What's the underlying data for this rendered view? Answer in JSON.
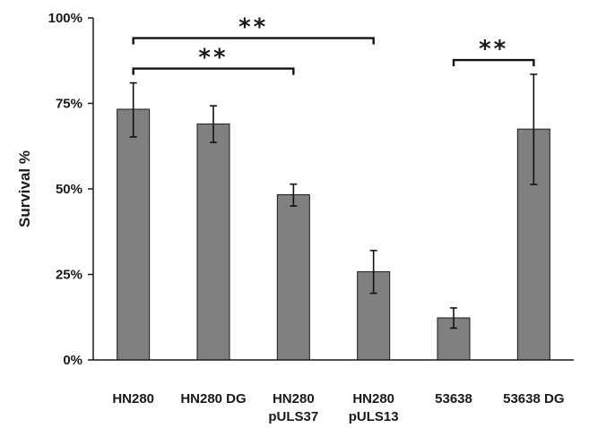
{
  "chart_data": {
    "type": "bar",
    "title": "",
    "xlabel": "",
    "ylabel": "Survival %",
    "ylim": [
      0,
      100
    ],
    "yticks": [
      {
        "value": 0,
        "label": "0%"
      },
      {
        "value": 25,
        "label": "25%"
      },
      {
        "value": 50,
        "label": "50%"
      },
      {
        "value": 75,
        "label": "75%"
      },
      {
        "value": 100,
        "label": "100%"
      }
    ],
    "grid": false,
    "legend": "none",
    "bar_color": "#808080",
    "categories": [
      {
        "line1": "HN280",
        "line2": ""
      },
      {
        "line1": "HN280 DG",
        "line2": ""
      },
      {
        "line1": "HN280",
        "line2": "pULS37"
      },
      {
        "line1": "HN280",
        "line2": "pULS13"
      },
      {
        "line1": "53638",
        "line2": ""
      },
      {
        "line1": "53638 DG",
        "line2": ""
      }
    ],
    "values": [
      73.3,
      69.0,
      48.3,
      25.8,
      12.3,
      67.5
    ],
    "error_low": [
      65.2,
      63.6,
      45.0,
      19.5,
      9.3,
      51.3
    ],
    "error_high": [
      81.0,
      74.3,
      51.4,
      32.0,
      15.2,
      83.5
    ],
    "significance": [
      {
        "from": 0,
        "to": 2,
        "label": "**"
      },
      {
        "from": 0,
        "to": 3,
        "label": "**"
      },
      {
        "from": 4,
        "to": 5,
        "label": "**"
      }
    ]
  }
}
